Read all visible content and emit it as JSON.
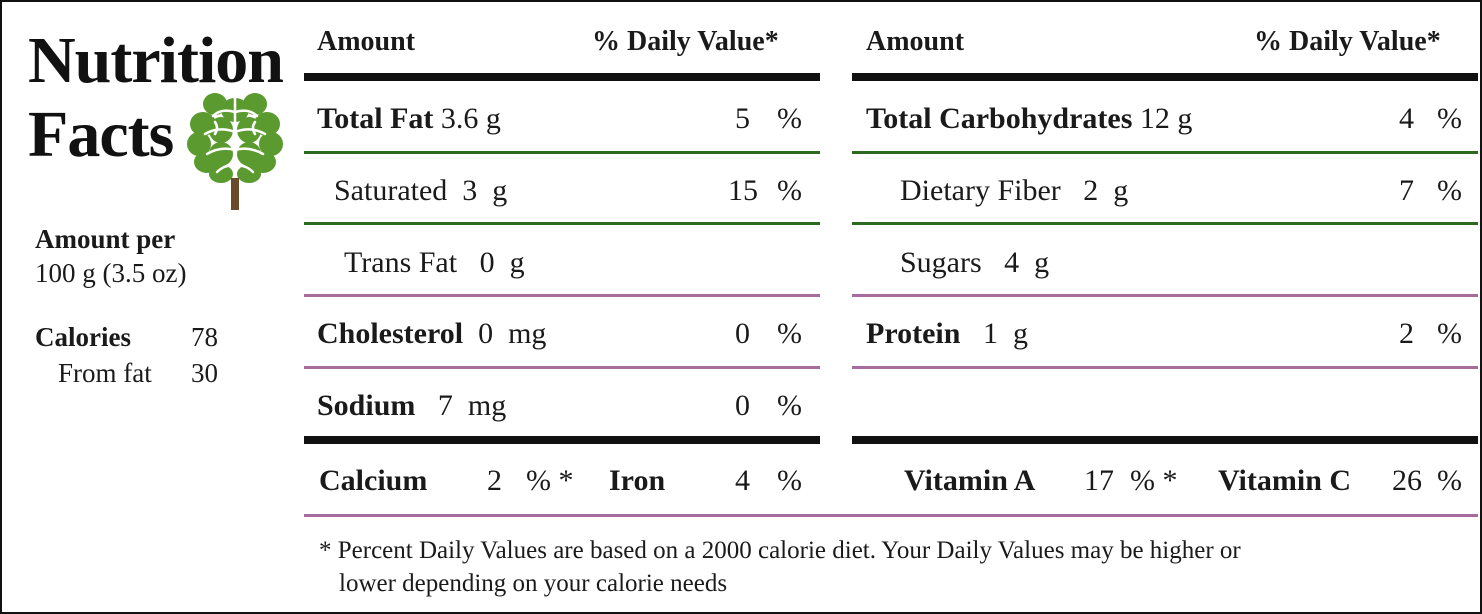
{
  "title": {
    "line1": "Nutrition",
    "line2": "Facts"
  },
  "serving": {
    "label": "Amount per",
    "value": "100 g (3.5 oz)"
  },
  "calories": {
    "label": "Calories",
    "value": "78",
    "from_fat_label": "From fat",
    "from_fat_value": "30"
  },
  "headers": {
    "amount": "Amount",
    "daily_value": "% Daily Value*"
  },
  "left_rows": [
    {
      "name": "Total Fat",
      "amount": "3.6 g",
      "dv": "5",
      "pct": "%"
    },
    {
      "name": "Saturated",
      "amount": "3  g",
      "dv": "15",
      "pct": "%"
    },
    {
      "name": "Trans Fat",
      "amount": "0  g"
    },
    {
      "name": "Cholesterol",
      "amount": "0  mg",
      "dv": "0",
      "pct": "%"
    },
    {
      "name": "Sodium",
      "amount": "7  mg",
      "dv": "0",
      "pct": "%"
    }
  ],
  "right_rows": [
    {
      "name": "Total Carbohydrates",
      "amount": "12 g",
      "dv": "4",
      "pct": "%"
    },
    {
      "name": "Dietary Fiber",
      "amount": "2  g",
      "dv": "7",
      "pct": "%"
    },
    {
      "name": "Sugars",
      "amount": "4  g"
    },
    {
      "name": "Protein",
      "amount": "1  g",
      "dv": "2",
      "pct": "%"
    }
  ],
  "minerals": {
    "calcium_label": "Calcium",
    "calcium_value": "2",
    "calcium_pct": "% *",
    "iron_label": "Iron",
    "iron_value": "4",
    "iron_pct": "%",
    "vitamin_a_label": "Vitamin A",
    "vitamin_a_value": "17",
    "vitamin_a_pct": "% *",
    "vitamin_c_label": "Vitamin C",
    "vitamin_c_value": "26",
    "vitamin_c_pct": "%"
  },
  "footnote": {
    "line1": "* Percent Daily Values are based on a 2000 calorie diet. Your Daily Values may be higher or",
    "line2": "lower depending on your calorie needs"
  },
  "colors": {
    "green_rule": "#2d6a1f",
    "purple_rule": "#a66c9e",
    "tree_leaf": "#5a9a2e",
    "tree_trunk": "#6b4a2b"
  },
  "icons": {
    "tree": "brain-tree-icon"
  }
}
